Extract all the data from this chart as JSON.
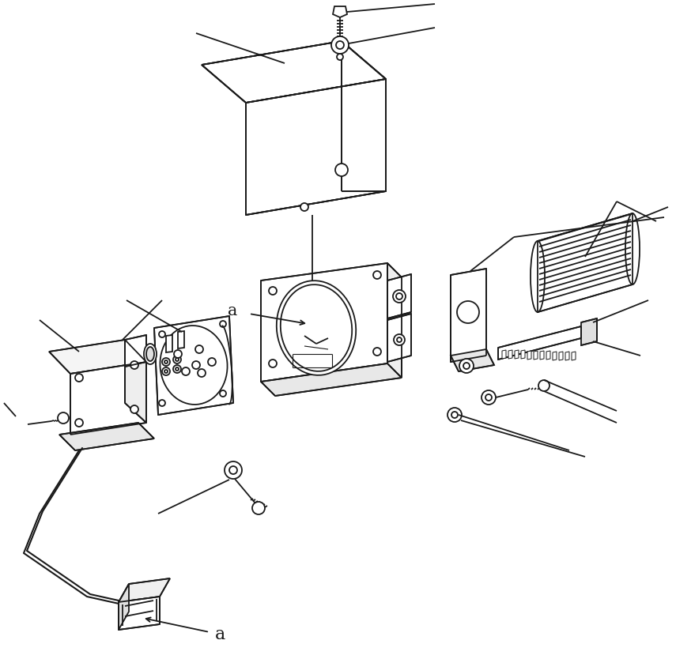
{
  "bg_color": "#ffffff",
  "lc": "#1a1a1a",
  "lw": 1.3,
  "fig_w": 8.55,
  "fig_h": 8.34
}
